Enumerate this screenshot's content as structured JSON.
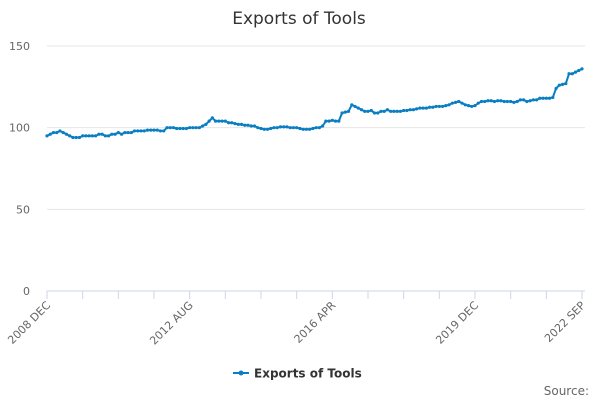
{
  "chart_data": {
    "type": "line",
    "title": "Exports of Tools",
    "xlabel": "",
    "ylabel": "",
    "x_start": "2008 DEC",
    "x_end": "2022 SEP",
    "x_frequency": "monthly",
    "x_tick_labels": [
      "2008 DEC",
      "2012 AUG",
      "2016 APR",
      "2019 DEC",
      "2022 SEP"
    ],
    "x_tick_index": [
      0,
      44,
      88,
      132,
      165
    ],
    "y_ticks": [
      0,
      50,
      100,
      150
    ],
    "ylim": [
      0,
      150
    ],
    "grid": true,
    "legend_position": "bottom",
    "series": [
      {
        "name": "Exports of Tools",
        "color": "#0a7ec2",
        "values": [
          95,
          96,
          97,
          97,
          98,
          97,
          96,
          95,
          94,
          94,
          94,
          95,
          95,
          95,
          95,
          95,
          96,
          96,
          95,
          95,
          96,
          96,
          97,
          96,
          97,
          97,
          97,
          98,
          98,
          98,
          98,
          98.5,
          98.5,
          98.5,
          98.5,
          98,
          98,
          100,
          100,
          100,
          99.5,
          99.5,
          99.5,
          99.5,
          100,
          100,
          100,
          100,
          101,
          102,
          104,
          106,
          104,
          104,
          104,
          104,
          103,
          103,
          102.5,
          102,
          102,
          101.5,
          101.5,
          101,
          101,
          100,
          99.5,
          99,
          99,
          99.5,
          100,
          100,
          100.5,
          100.5,
          100.5,
          100,
          100,
          100,
          99.5,
          99,
          99,
          99,
          99.5,
          100,
          100,
          101,
          104,
          104,
          104.5,
          104,
          104,
          109,
          109.5,
          110,
          114,
          113,
          112,
          111,
          110,
          110,
          110.5,
          109,
          109,
          110,
          110,
          111,
          110,
          110,
          110,
          110,
          110.5,
          110.5,
          111,
          111,
          111.5,
          112,
          112,
          112,
          112.5,
          112.5,
          113,
          113,
          113,
          113.5,
          114,
          115,
          115.5,
          116,
          115,
          114,
          113.5,
          113,
          113.5,
          115,
          116,
          116,
          116.5,
          116.5,
          116,
          116.5,
          116.5,
          116,
          116,
          116,
          115.5,
          116,
          117,
          117,
          116,
          116.5,
          117,
          117,
          118,
          118,
          118,
          118,
          118.5,
          124,
          126,
          126.5,
          127,
          133,
          133,
          134,
          135,
          136
        ]
      }
    ],
    "source_label": "Source:"
  }
}
